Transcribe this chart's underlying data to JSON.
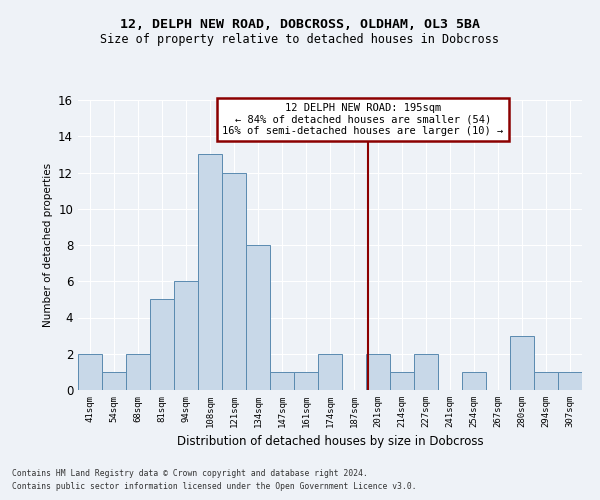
{
  "title1": "12, DELPH NEW ROAD, DOBCROSS, OLDHAM, OL3 5BA",
  "title2": "Size of property relative to detached houses in Dobcross",
  "xlabel": "Distribution of detached houses by size in Dobcross",
  "ylabel": "Number of detached properties",
  "categories": [
    "41sqm",
    "54sqm",
    "68sqm",
    "81sqm",
    "94sqm",
    "108sqm",
    "121sqm",
    "134sqm",
    "147sqm",
    "161sqm",
    "174sqm",
    "187sqm",
    "201sqm",
    "214sqm",
    "227sqm",
    "241sqm",
    "254sqm",
    "267sqm",
    "280sqm",
    "294sqm",
    "307sqm"
  ],
  "values": [
    2,
    1,
    2,
    5,
    6,
    13,
    12,
    8,
    1,
    1,
    2,
    0,
    2,
    1,
    2,
    0,
    1,
    0,
    3,
    1,
    1
  ],
  "bar_color": "#c8d8e8",
  "bar_edge_color": "#5a8ab0",
  "annotation_line1": "12 DELPH NEW ROAD: 195sqm",
  "annotation_line2": "← 84% of detached houses are smaller (54)",
  "annotation_line3": "16% of semi-detached houses are larger (10) →",
  "vline_color": "#8b0000",
  "annotation_box_color": "#8b0000",
  "ylim": [
    0,
    16
  ],
  "yticks": [
    0,
    2,
    4,
    6,
    8,
    10,
    12,
    14,
    16
  ],
  "bg_color": "#eef2f7",
  "grid_color": "#ffffff",
  "footer1": "Contains HM Land Registry data © Crown copyright and database right 2024.",
  "footer2": "Contains public sector information licensed under the Open Government Licence v3.0."
}
